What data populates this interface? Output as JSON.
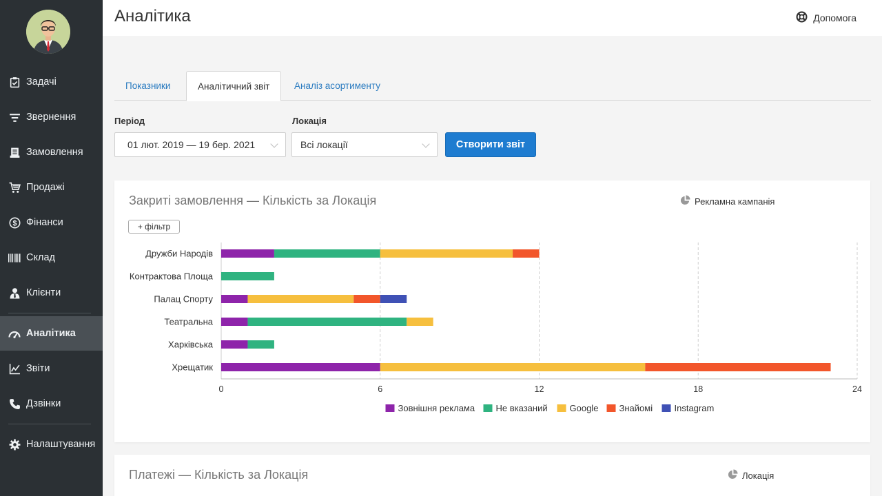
{
  "header": {
    "title": "Аналітика",
    "help_label": "Допомога"
  },
  "sidebar": {
    "items": [
      {
        "label": "Задачі",
        "icon": "clipboard-check-icon"
      },
      {
        "label": "Звернення",
        "icon": "filter-lines-icon"
      },
      {
        "label": "Замовлення",
        "icon": "receipt-icon"
      },
      {
        "label": "Продажі",
        "icon": "cart-icon"
      },
      {
        "label": "Фінанси",
        "icon": "dollar-circle-icon"
      },
      {
        "label": "Склад",
        "icon": "barcode-icon"
      },
      {
        "label": "Клієнти",
        "icon": "user-tie-icon"
      },
      {
        "label": "Аналітика",
        "icon": "gauge-icon",
        "active": true
      },
      {
        "label": "Звіти",
        "icon": "line-chart-icon"
      },
      {
        "label": "Дзвінки",
        "icon": "phone-icon"
      },
      {
        "label": "Налаштування",
        "icon": "gear-icon"
      }
    ]
  },
  "tabs": [
    {
      "label": "Показники"
    },
    {
      "label": "Аналітичний звіт",
      "active": true
    },
    {
      "label": "Аналіз асортименту"
    }
  ],
  "filters": {
    "period_label": "Період",
    "period_value": "01 лют. 2019 — 19 бер. 2021",
    "location_label": "Локація",
    "location_value": "Всі локації",
    "create_button": "Створити звіт"
  },
  "card1": {
    "title": "Закриті замовлення  —  Кількість за Локація",
    "toggle_label": "Рекламна кампанія",
    "filter_button": "+ фільтр"
  },
  "card2": {
    "title": "Платежі  —  Кількість за Локація",
    "toggle_label": "Локація"
  },
  "chart_data": {
    "type": "bar",
    "orientation": "horizontal",
    "stacked": true,
    "categories": [
      "Дружби Народів",
      "Контрактова Площа",
      "Палац Спорту",
      "Театральна",
      "Харківська",
      "Хрещатик"
    ],
    "series": [
      {
        "name": "Зовнішня реклама",
        "color": "#8e24aa",
        "values": [
          2,
          0,
          1,
          1,
          1,
          6
        ]
      },
      {
        "name": "Не вказаний",
        "color": "#2fb380",
        "values": [
          4,
          2,
          0,
          6,
          1,
          0
        ]
      },
      {
        "name": "Google",
        "color": "#f6bf3e",
        "values": [
          5,
          0,
          4,
          1,
          0,
          10
        ]
      },
      {
        "name": "Знайомі",
        "color": "#f2562b",
        "values": [
          1,
          0,
          1,
          0,
          0,
          7
        ]
      },
      {
        "name": "Instagram",
        "color": "#3f51b5",
        "values": [
          0,
          0,
          1,
          0,
          0,
          0
        ]
      }
    ],
    "xlim": [
      0,
      24
    ],
    "xticks": [
      0,
      6,
      12,
      18,
      24
    ],
    "grid": true,
    "legend": "bottom"
  }
}
